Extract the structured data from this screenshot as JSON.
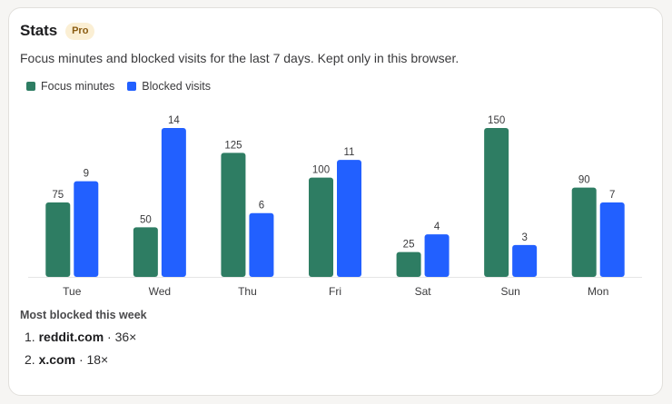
{
  "card": {
    "title": "Stats",
    "badge": "Pro",
    "subtitle": "Focus minutes and blocked visits for the last 7 days. Kept only in this browser."
  },
  "colors": {
    "focus": "#2e7d63",
    "blocked": "#2260ff",
    "badge_bg": "#fbefd4"
  },
  "chart_data": {
    "type": "bar",
    "categories": [
      "Tue",
      "Wed",
      "Thu",
      "Fri",
      "Sat",
      "Sun",
      "Mon"
    ],
    "series": [
      {
        "name": "Focus minutes",
        "values": [
          75,
          50,
          125,
          100,
          25,
          150,
          90
        ]
      },
      {
        "name": "Blocked visits",
        "values": [
          9,
          14,
          6,
          11,
          4,
          3,
          7
        ]
      }
    ],
    "data_labels": true,
    "grid": false,
    "legend": "top-left"
  },
  "most_blocked": {
    "title": "Most blocked this week",
    "items": [
      {
        "rank": "1.",
        "domain": "reddit.com",
        "count": "· 36×"
      },
      {
        "rank": "2.",
        "domain": "x.com",
        "count": "· 18×"
      }
    ]
  }
}
